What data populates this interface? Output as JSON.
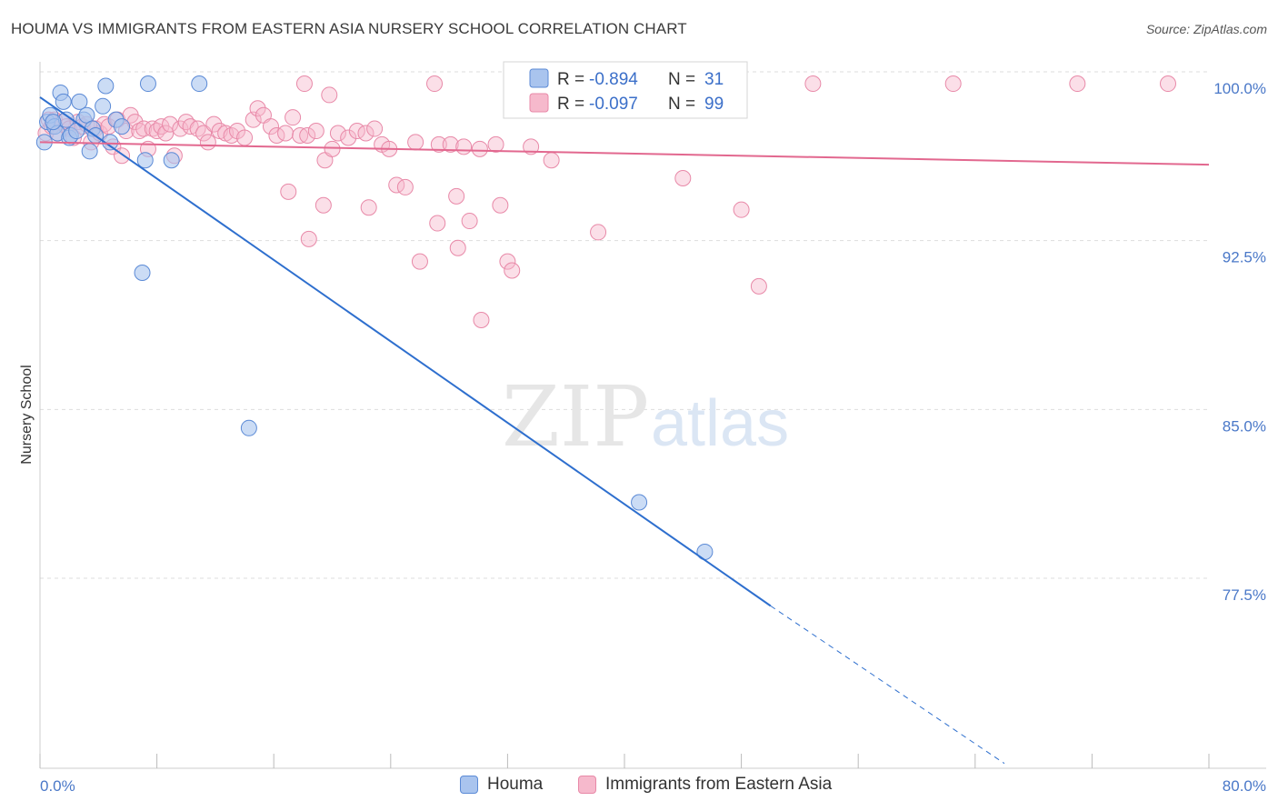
{
  "header": {
    "title": "HOUMA VS IMMIGRANTS FROM EASTERN ASIA NURSERY SCHOOL CORRELATION CHART",
    "source": "Source: ZipAtlas.com"
  },
  "watermark": {
    "zip": "ZIP",
    "atlas": "atlas"
  },
  "colors": {
    "houma_fill": "#a9c4ee",
    "houma_stroke": "#5b8ad6",
    "houma_line": "#2e6fce",
    "imm_fill": "#f6b9cc",
    "imm_stroke": "#e889a8",
    "imm_line": "#e2688f",
    "tick_text": "#4a78c8",
    "grid": "#dddddd"
  },
  "legend": {
    "rows": [
      {
        "r_label": "R =",
        "r_value": "-0.894",
        "n_label": "N =",
        "n_value": "31"
      },
      {
        "r_label": "R =",
        "r_value": "-0.097",
        "n_label": "N =",
        "n_value": "99"
      }
    ]
  },
  "bottom_legend": [
    "Houma",
    "Immigrants from Eastern Asia"
  ],
  "chart_data": {
    "type": "scatter",
    "title": "HOUMA VS IMMIGRANTS FROM EASTERN ASIA NURSERY SCHOOL CORRELATION CHART",
    "xlabel": "",
    "ylabel": "Nursery School",
    "xlim": [
      0,
      80
    ],
    "ylim": [
      70,
      101.5
    ],
    "x_tick_labels": [
      "0.0%",
      "80.0%"
    ],
    "y_ticks": [
      77.5,
      85.0,
      92.5,
      100.0
    ],
    "y_tick_labels": [
      "77.5%",
      "85.0%",
      "92.5%",
      "100.0%"
    ],
    "grid": true,
    "legend_position": "top-center",
    "series": [
      {
        "name": "Houma",
        "r": -0.894,
        "n": 31,
        "trend": {
          "x0": 0.0,
          "y0": 99.6,
          "x1": 50.0,
          "y1": 77.0,
          "dashed_to_x": 66.0,
          "dashed_to_y": 70.0
        },
        "points": [
          [
            0.3,
            97.6
          ],
          [
            0.5,
            98.5
          ],
          [
            0.7,
            98.8
          ],
          [
            1.0,
            98.3
          ],
          [
            1.2,
            98.0
          ],
          [
            1.4,
            99.8
          ],
          [
            1.6,
            99.4
          ],
          [
            1.8,
            98.6
          ],
          [
            2.0,
            97.8
          ],
          [
            2.1,
            97.9
          ],
          [
            2.5,
            98.1
          ],
          [
            2.7,
            99.4
          ],
          [
            3.0,
            98.6
          ],
          [
            3.2,
            98.8
          ],
          [
            3.4,
            97.2
          ],
          [
            3.6,
            98.2
          ],
          [
            3.8,
            97.9
          ],
          [
            4.3,
            99.2
          ],
          [
            4.5,
            100.1
          ],
          [
            4.8,
            97.6
          ],
          [
            5.2,
            98.6
          ],
          [
            5.6,
            98.3
          ],
          [
            7.2,
            96.8
          ],
          [
            7.4,
            100.2
          ],
          [
            9.0,
            96.8
          ],
          [
            10.9,
            100.2
          ],
          [
            7.0,
            91.8
          ],
          [
            14.3,
            84.9
          ],
          [
            41.0,
            81.6
          ],
          [
            45.5,
            79.4
          ],
          [
            0.9,
            98.5
          ]
        ]
      },
      {
        "name": "Immigrants from Eastern Asia",
        "r": -0.097,
        "n": 99,
        "trend": {
          "x0": 0.0,
          "y0": 97.6,
          "x1": 80.0,
          "y1": 96.6
        },
        "points": [
          [
            0.4,
            98.0
          ],
          [
            0.6,
            98.6
          ],
          [
            0.8,
            98.3
          ],
          [
            1.0,
            98.6
          ],
          [
            1.2,
            98.0
          ],
          [
            1.5,
            98.5
          ],
          [
            1.8,
            98.3
          ],
          [
            2.0,
            98.2
          ],
          [
            2.3,
            97.8
          ],
          [
            2.6,
            98.5
          ],
          [
            2.9,
            98.3
          ],
          [
            3.2,
            98.4
          ],
          [
            3.5,
            97.6
          ],
          [
            3.8,
            98.2
          ],
          [
            4.1,
            98.0
          ],
          [
            4.4,
            98.4
          ],
          [
            4.7,
            98.3
          ],
          [
            5.0,
            97.4
          ],
          [
            5.3,
            98.6
          ],
          [
            5.6,
            97.0
          ],
          [
            5.9,
            98.1
          ],
          [
            6.2,
            98.8
          ],
          [
            6.5,
            98.5
          ],
          [
            6.8,
            98.1
          ],
          [
            7.1,
            98.2
          ],
          [
            7.4,
            97.3
          ],
          [
            7.7,
            98.2
          ],
          [
            8.0,
            98.1
          ],
          [
            8.3,
            98.3
          ],
          [
            8.6,
            98.0
          ],
          [
            8.9,
            98.4
          ],
          [
            9.2,
            97.0
          ],
          [
            9.6,
            98.2
          ],
          [
            10.0,
            98.5
          ],
          [
            10.3,
            98.3
          ],
          [
            10.8,
            98.2
          ],
          [
            11.2,
            98.0
          ],
          [
            11.5,
            97.6
          ],
          [
            11.9,
            98.4
          ],
          [
            12.3,
            98.1
          ],
          [
            12.7,
            98.0
          ],
          [
            13.1,
            97.9
          ],
          [
            13.5,
            98.1
          ],
          [
            14.0,
            97.8
          ],
          [
            14.6,
            98.6
          ],
          [
            14.9,
            99.1
          ],
          [
            15.3,
            98.8
          ],
          [
            15.8,
            98.3
          ],
          [
            16.2,
            97.9
          ],
          [
            16.8,
            98.0
          ],
          [
            17.3,
            98.7
          ],
          [
            17.8,
            97.9
          ],
          [
            18.3,
            97.9
          ],
          [
            18.9,
            98.1
          ],
          [
            19.5,
            96.8
          ],
          [
            20.0,
            97.3
          ],
          [
            20.4,
            98.0
          ],
          [
            21.1,
            97.8
          ],
          [
            21.7,
            98.1
          ],
          [
            22.3,
            98.0
          ],
          [
            22.9,
            98.2
          ],
          [
            23.4,
            97.5
          ],
          [
            23.9,
            97.3
          ],
          [
            24.4,
            95.7
          ],
          [
            25.0,
            95.6
          ],
          [
            25.7,
            97.6
          ],
          [
            27.3,
            97.5
          ],
          [
            28.1,
            97.5
          ],
          [
            29.0,
            97.4
          ],
          [
            30.1,
            97.3
          ],
          [
            31.2,
            97.5
          ],
          [
            33.6,
            97.4
          ],
          [
            35.0,
            96.8
          ],
          [
            28.5,
            95.2
          ],
          [
            22.5,
            94.7
          ],
          [
            19.4,
            94.8
          ],
          [
            27.2,
            94.0
          ],
          [
            29.4,
            94.1
          ],
          [
            31.5,
            94.8
          ],
          [
            17.0,
            95.4
          ],
          [
            18.4,
            93.3
          ],
          [
            26.0,
            92.3
          ],
          [
            28.6,
            92.9
          ],
          [
            32.0,
            92.3
          ],
          [
            32.3,
            91.9
          ],
          [
            30.2,
            89.7
          ],
          [
            38.2,
            93.6
          ],
          [
            44.0,
            96.0
          ],
          [
            48.0,
            94.6
          ],
          [
            49.2,
            91.2
          ],
          [
            18.1,
            100.2
          ],
          [
            19.8,
            99.7
          ],
          [
            27.0,
            100.2
          ],
          [
            39.1,
            100.2
          ],
          [
            42.6,
            100.2
          ],
          [
            52.9,
            100.2
          ],
          [
            62.5,
            100.2
          ],
          [
            71.0,
            100.2
          ],
          [
            77.2,
            100.2
          ]
        ]
      }
    ]
  }
}
